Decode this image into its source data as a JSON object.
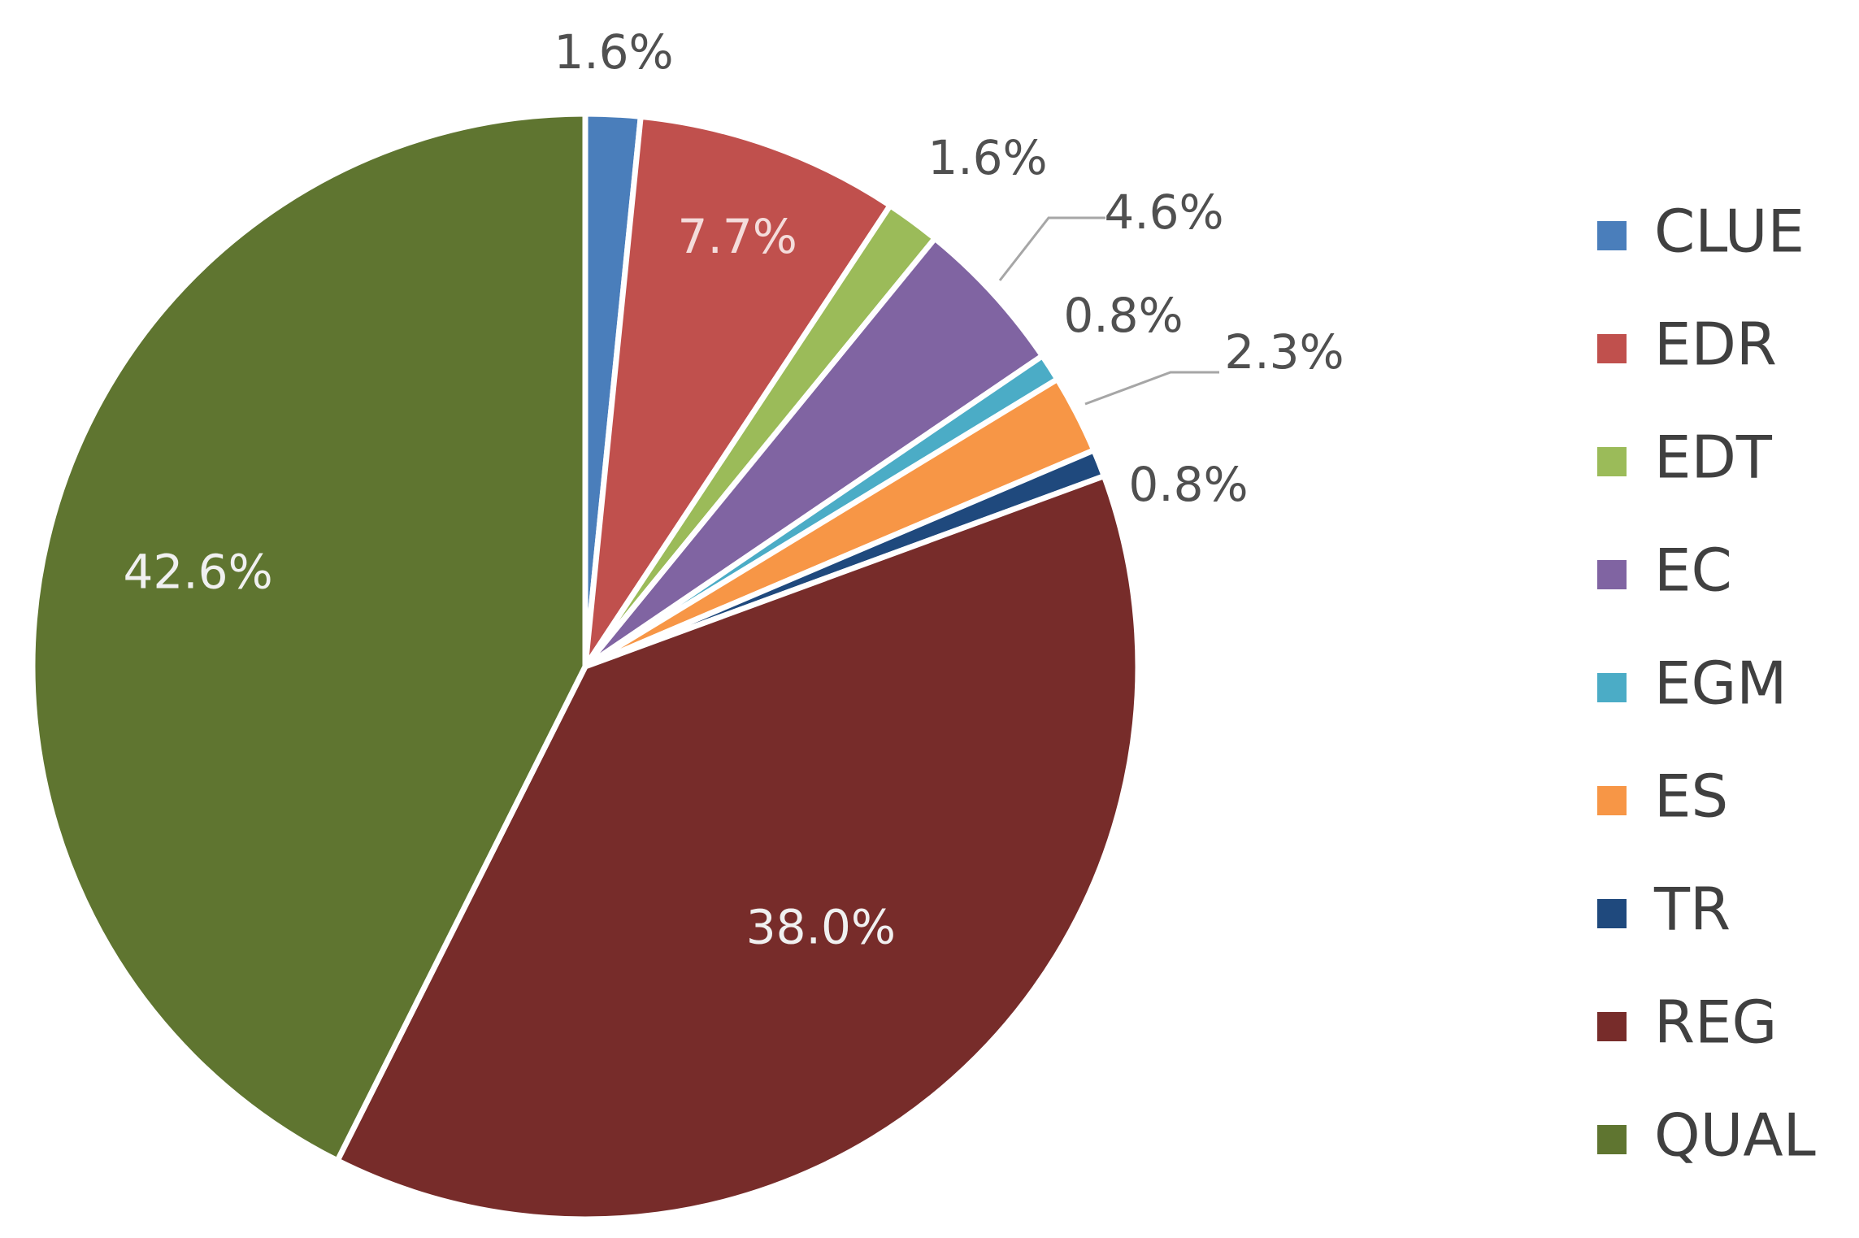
{
  "chart_data": {
    "type": "pie",
    "title": "",
    "legend_position": "right",
    "slices": [
      {
        "name": "CLUE",
        "value": 1.6,
        "label": "1.6%",
        "color": "#4a7ebb",
        "label_inside": false
      },
      {
        "name": "EDR",
        "value": 7.7,
        "label": "7.7%",
        "color": "#c0504d",
        "label_inside": true
      },
      {
        "name": "EDT",
        "value": 1.6,
        "label": "1.6%",
        "color": "#9bbb59",
        "label_inside": false
      },
      {
        "name": "EC",
        "value": 4.6,
        "label": "4.6%",
        "color": "#8064a2",
        "label_inside": false
      },
      {
        "name": "EGM",
        "value": 0.8,
        "label": "0.8%",
        "color": "#4bacc6",
        "label_inside": false
      },
      {
        "name": "ES",
        "value": 2.3,
        "label": "2.3%",
        "color": "#f79646",
        "label_inside": false
      },
      {
        "name": "TR",
        "value": 0.8,
        "label": "0.8%",
        "color": "#1f497d",
        "label_inside": false
      },
      {
        "name": "REG",
        "value": 38.0,
        "label": "38.0%",
        "color": "#772c2a",
        "label_inside": true
      },
      {
        "name": "QUAL",
        "value": 42.6,
        "label": "42.6%",
        "color": "#5f7530",
        "label_inside": true
      }
    ]
  }
}
